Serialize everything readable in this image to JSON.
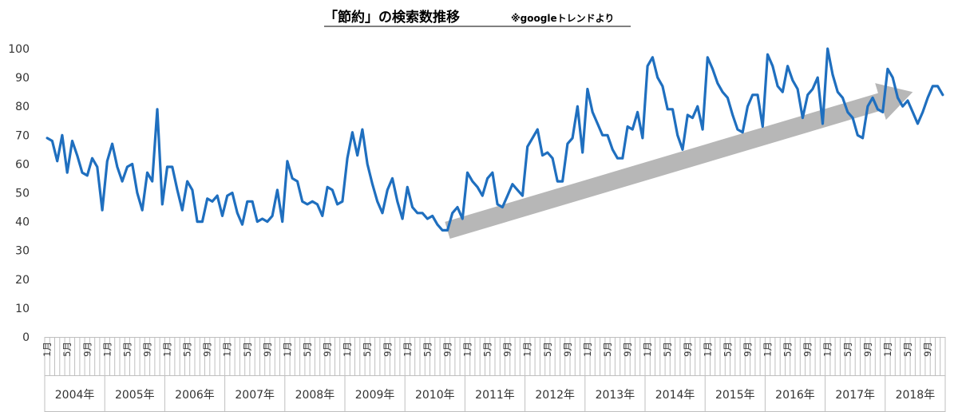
{
  "chart_data": {
    "type": "line",
    "title": "「節約」の検索数推移",
    "title_note": "※googleトレンドより",
    "ylim": [
      0,
      100
    ],
    "yticks": [
      "0",
      "10",
      "20",
      "30",
      "40",
      "50",
      "60",
      "70",
      "80",
      "90",
      "100"
    ],
    "month_labels": [
      "1月",
      "5月",
      "9月"
    ],
    "years": [
      "2004年",
      "2005年",
      "2006年",
      "2007年",
      "2008年",
      "2009年",
      "2010年",
      "2011年",
      "2012年",
      "2013年",
      "2014年",
      "2015年",
      "2016年",
      "2017年",
      "2018年"
    ],
    "start": "2004-01",
    "interval": "monthly",
    "series_color": "#1f6fbf",
    "arrow_color": "#b7b7b7",
    "trend_arrow": {
      "from": [
        "2010-09",
        37
      ],
      "to": [
        "2018-06",
        85
      ]
    },
    "series": [
      {
        "values": [
          69,
          68,
          61,
          70,
          57,
          68,
          63,
          57,
          56,
          62,
          59,
          44,
          61,
          67,
          59,
          54,
          59,
          60,
          50,
          44,
          57,
          54,
          79,
          46,
          59,
          59,
          51,
          44,
          54,
          51,
          40,
          40,
          48,
          47,
          49,
          42,
          49,
          50,
          43,
          39,
          47,
          47,
          40,
          41,
          40,
          42,
          51,
          40,
          61,
          55,
          54,
          47,
          46,
          47,
          46,
          42,
          52,
          51,
          46,
          47,
          62,
          71,
          63,
          72,
          60,
          53,
          47,
          43,
          51,
          55,
          47,
          41,
          52,
          45,
          43,
          43,
          41,
          42,
          39,
          37,
          37,
          43,
          45,
          41,
          57,
          54,
          52,
          49,
          55,
          57,
          46,
          45,
          49,
          53,
          51,
          49,
          66,
          69,
          72,
          63,
          64,
          62,
          54,
          54,
          67,
          69,
          80,
          64,
          86,
          78,
          74,
          70,
          70,
          65,
          62,
          62,
          73,
          72,
          78,
          69,
          94,
          97,
          90,
          87,
          79,
          79,
          70,
          65,
          77,
          76,
          80,
          72,
          97,
          93,
          88,
          85,
          83,
          77,
          72,
          71,
          80,
          84,
          84,
          73,
          98,
          94,
          87,
          85,
          94,
          89,
          86,
          76,
          84,
          86,
          90,
          74,
          100,
          91,
          85,
          83,
          78,
          76,
          70,
          69,
          80,
          83,
          79,
          78,
          93,
          90,
          83,
          80,
          82,
          78,
          74,
          78,
          83,
          87,
          87,
          84
        ]
      }
    ]
  }
}
